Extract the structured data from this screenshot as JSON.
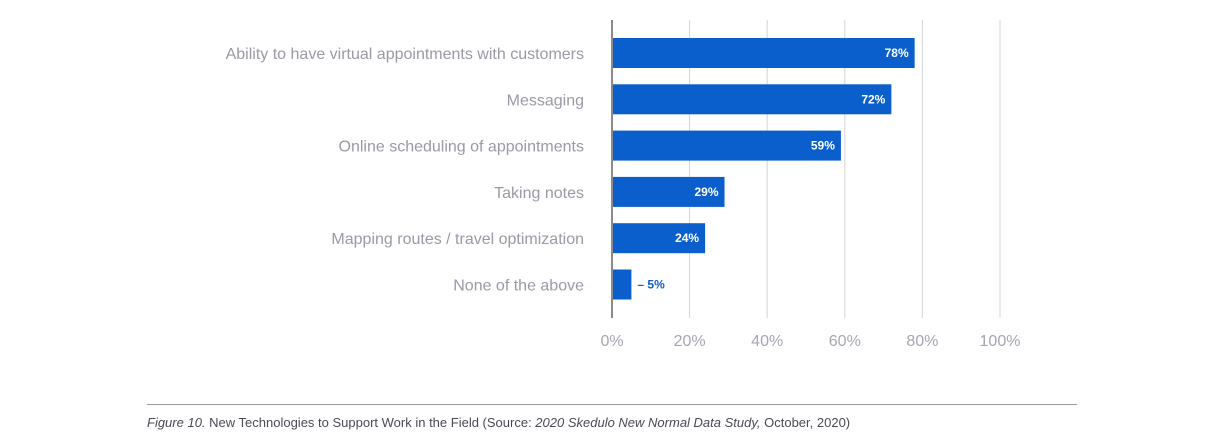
{
  "chart_data": {
    "type": "bar",
    "orientation": "horizontal",
    "categories": [
      "Ability to have virtual appointments with customers",
      "Messaging",
      "Online scheduling of appointments",
      "Taking notes",
      "Mapping routes / travel optimization",
      "None of the above"
    ],
    "values": [
      78,
      72,
      59,
      29,
      24,
      5
    ],
    "value_labels": [
      "78%",
      "72%",
      "59%",
      "29%",
      "24%",
      "– 5%"
    ],
    "xlim": [
      0,
      100
    ],
    "xticks": [
      0,
      20,
      40,
      60,
      80,
      100
    ],
    "xtick_labels": [
      "0%",
      "20%",
      "40%",
      "60%",
      "80%",
      "100%"
    ],
    "grid": "vertical",
    "colors": {
      "bar": "#0a5fcc",
      "grid": "#d4d4d8",
      "axis": "#8a8a8a"
    }
  },
  "caption": {
    "figure_label": "Figure 10.",
    "text_1": " New Technologies to Support Work in the Field (Source: ",
    "study_name": "2020 Skedulo New Normal Data Study,",
    "text_2": " October, 2020)"
  }
}
